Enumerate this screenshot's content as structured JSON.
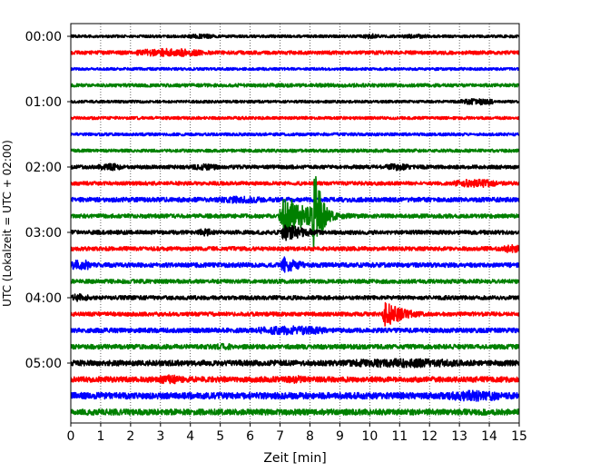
{
  "chart_data": {
    "type": "line",
    "subtype": "helicorder",
    "title": "",
    "xlabel": "Zeit  [min]",
    "ylabel": "UTC (Lokalzeit = UTC + 02:00)",
    "xlim": [
      0,
      15
    ],
    "xticks": [
      "0",
      "1",
      "2",
      "3",
      "4",
      "5",
      "6",
      "7",
      "8",
      "9",
      "10",
      "11",
      "12",
      "13",
      "14",
      "15"
    ],
    "yticks": [
      "00:00",
      "01:00",
      "02:00",
      "03:00",
      "04:00",
      "05:00"
    ],
    "trace_start_times_utc": [
      "00:00",
      "00:15",
      "00:30",
      "00:45",
      "01:00",
      "01:15",
      "01:30",
      "01:45",
      "02:00",
      "02:15",
      "02:30",
      "02:45",
      "03:00",
      "03:15",
      "03:30",
      "03:45",
      "04:00",
      "04:15",
      "04:30",
      "04:45",
      "05:00",
      "05:15",
      "05:30",
      "05:45"
    ],
    "trace_colors": [
      "#000000",
      "#ff0000",
      "#0000ff",
      "#008000"
    ],
    "grid": {
      "x": "dotted-vertical",
      "y": "none"
    },
    "legend": "none",
    "noise_level": [
      1.5,
      2.0,
      1.5,
      1.8,
      1.5,
      1.6,
      1.6,
      1.7,
      2.0,
      2.0,
      2.5,
      2.2,
      2.2,
      2.2,
      2.5,
      2.2,
      2.2,
      2.2,
      2.5,
      2.5,
      3.0,
      3.0,
      3.5,
      3.2
    ],
    "bursts": [
      {
        "trace": 0,
        "start": 3.8,
        "end": 4.9,
        "amp": 2.5
      },
      {
        "trace": 0,
        "start": 9.8,
        "end": 10.3,
        "amp": 3.0
      },
      {
        "trace": 0,
        "start": 11.0,
        "end": 12.0,
        "amp": 2.5
      },
      {
        "trace": 1,
        "start": 2.2,
        "end": 4.4,
        "amp": 4.5
      },
      {
        "trace": 3,
        "start": 0.0,
        "end": 15.0,
        "amp": 2.0
      },
      {
        "trace": 4,
        "start": 13.0,
        "end": 14.2,
        "amp": 3.5
      },
      {
        "trace": 8,
        "start": 0.9,
        "end": 1.7,
        "amp": 4.0
      },
      {
        "trace": 8,
        "start": 4.0,
        "end": 5.0,
        "amp": 3.5
      },
      {
        "trace": 8,
        "start": 10.5,
        "end": 11.4,
        "amp": 4.0
      },
      {
        "trace": 9,
        "start": 12.8,
        "end": 14.3,
        "amp": 4.5
      },
      {
        "trace": 10,
        "start": 4.8,
        "end": 6.5,
        "amp": 4.0
      },
      {
        "trace": 12,
        "start": 4.2,
        "end": 4.8,
        "amp": 4.0
      },
      {
        "trace": 13,
        "start": 14.5,
        "end": 15.0,
        "amp": 5.0
      },
      {
        "trace": 14,
        "start": 0.0,
        "end": 0.7,
        "amp": 6.0
      },
      {
        "trace": 16,
        "start": 0.0,
        "end": 0.6,
        "amp": 4.5
      },
      {
        "trace": 18,
        "start": 6.2,
        "end": 8.6,
        "amp": 5.0
      },
      {
        "trace": 19,
        "start": 4.6,
        "end": 5.6,
        "amp": 3.5
      },
      {
        "trace": 20,
        "start": 9.0,
        "end": 13.2,
        "amp": 5.0
      },
      {
        "trace": 21,
        "start": 2.8,
        "end": 3.8,
        "amp": 5.0
      },
      {
        "trace": 21,
        "start": 7.2,
        "end": 7.8,
        "amp": 4.5
      },
      {
        "trace": 22,
        "start": 12.5,
        "end": 14.6,
        "amp": 6.0
      }
    ],
    "events": [
      {
        "trace": 11,
        "onset": 6.95,
        "end": 10.2,
        "peak_amp": 28,
        "description": "main green earthquake record"
      },
      {
        "trace": 11,
        "onset": 8.05,
        "end": 8.9,
        "peak_amp": 80,
        "description": "second large arrival"
      },
      {
        "trace": 12,
        "onset": 7.0,
        "end": 9.8,
        "peak_amp": 12,
        "description": "coda continuing on next line"
      },
      {
        "trace": 14,
        "onset": 7.0,
        "end": 9.0,
        "peak_amp": 12,
        "description": "large spikes"
      },
      {
        "trace": 17,
        "onset": 10.4,
        "end": 12.6,
        "peak_amp": 18,
        "description": "red local event"
      }
    ]
  }
}
